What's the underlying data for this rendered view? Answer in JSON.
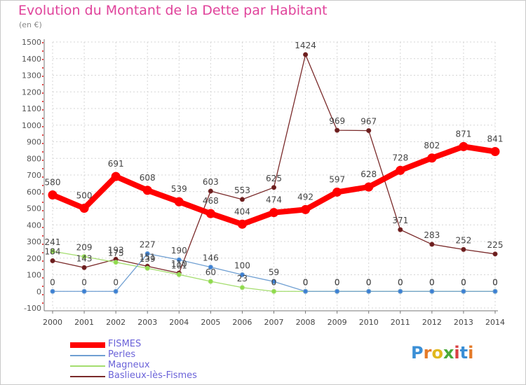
{
  "title": "Evolution du Montant de la Dette par Habitant",
  "unit": "(en €)",
  "logo": "Proxiti",
  "logo_letters": [
    {
      "ch": "P",
      "color": "#3b8fd6"
    },
    {
      "ch": "r",
      "color": "#e47a28"
    },
    {
      "ch": "o",
      "color": "#e0b81e"
    },
    {
      "ch": "x",
      "color": "#4aaa3a"
    },
    {
      "ch": "i",
      "color": "#d94141"
    },
    {
      "ch": "t",
      "color": "#3b8fd6"
    },
    {
      "ch": "i",
      "color": "#e47a28"
    }
  ],
  "chart_data": {
    "type": "line",
    "title": "Evolution du Montant de la Dette par Habitant",
    "ylabel": "(en €)",
    "x": [
      2000,
      2001,
      2002,
      2003,
      2004,
      2005,
      2006,
      2007,
      2008,
      2009,
      2010,
      2011,
      2012,
      2013,
      2014
    ],
    "ylim": [
      -100,
      1500
    ],
    "yticks": [
      -100,
      0,
      100,
      200,
      300,
      400,
      500,
      600,
      700,
      800,
      900,
      1000,
      1100,
      1200,
      1300,
      1400,
      1500
    ],
    "grid": true,
    "legend": "bottom-left",
    "series": [
      {
        "name": "FISMES",
        "color": "#ff0000",
        "values": [
          580,
          500,
          691,
          608,
          539,
          468,
          404,
          474,
          492,
          597,
          628,
          728,
          802,
          871,
          841
        ]
      },
      {
        "name": "Perles",
        "color": "#6f9fd2",
        "values": [
          0,
          0,
          0,
          227,
          190,
          146,
          100,
          59,
          0,
          0,
          0,
          0,
          0,
          0,
          0
        ]
      },
      {
        "name": "Magneux",
        "color": "#a4dd6e",
        "values": [
          241,
          209,
          175,
          139,
          101,
          60,
          23,
          0,
          0,
          0,
          0,
          0,
          0,
          0,
          0
        ]
      },
      {
        "name": "Baslieux-lès-Fismes",
        "color": "#7a2a2a",
        "values": [
          184,
          143,
          193,
          151,
          110,
          603,
          553,
          625,
          1424,
          969,
          967,
          371,
          283,
          252,
          225
        ]
      }
    ]
  }
}
